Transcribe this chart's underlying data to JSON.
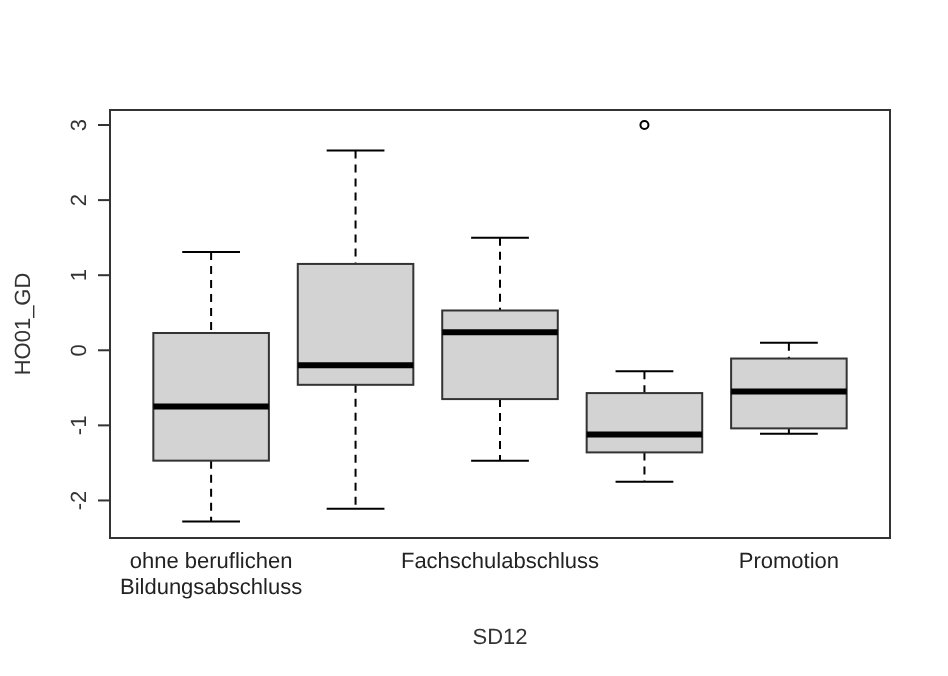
{
  "chart_data": {
    "type": "box",
    "xlabel": "SD12",
    "ylabel": "HO01_GD",
    "categories": [
      "ohne beruflichen\nBildungsabschluss",
      null,
      "Fachschulabschluss",
      null,
      "Promotion"
    ],
    "boxes": [
      {
        "low": -2.28,
        "q1": -1.47,
        "median": -0.75,
        "q3": 0.23,
        "high": 1.31
      },
      {
        "low": -2.11,
        "q1": -0.46,
        "median": -0.2,
        "q3": 1.15,
        "high": 2.66
      },
      {
        "low": -1.47,
        "q1": -0.65,
        "median": 0.24,
        "q3": 0.53,
        "high": 1.5
      },
      {
        "low": -1.75,
        "q1": -1.36,
        "median": -1.12,
        "q3": -0.57,
        "high": -0.28,
        "outliers": [
          3.0
        ]
      },
      {
        "low": -1.11,
        "q1": -1.04,
        "median": -0.55,
        "q3": -0.11,
        "high": 0.1
      }
    ],
    "color": "#d3d3d3",
    "ylim": [
      -2.5,
      3.2
    ],
    "yticks": [
      -2,
      -1,
      0,
      1,
      2,
      3
    ],
    "grid": false
  }
}
